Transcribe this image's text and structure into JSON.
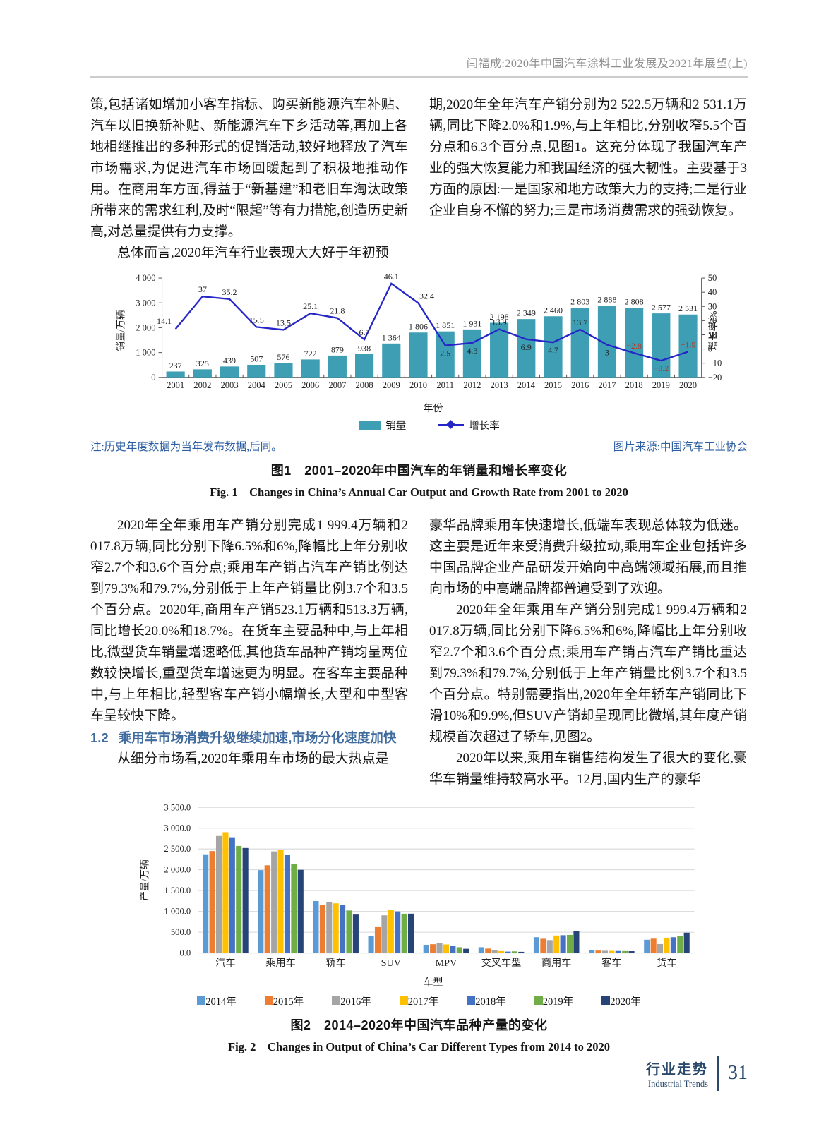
{
  "header": {
    "running_title": "闫福成:2020年中国汽车涂料工业发展及2021年展望(上)"
  },
  "sections": {
    "block1_left": {
      "p1": "策,包括诸如增加小客车指标、购买新能源汽车补贴、汽车以旧换新补贴、新能源汽车下乡活动等,再加上各地相继推出的多种形式的促销活动,较好地释放了汽车市场需求,为促进汽车市场回暖起到了积极地推动作用。在商用车方面,得益于“新基建”和老旧车淘汰政策所带来的需求红利,及时“限超”等有力措施,创造历史新高,对总量提供有力支撑。",
      "p2": "总体而言,2020年汽车行业表现大大好于年初预"
    },
    "block1_right": {
      "p1": "期,2020年全年汽车产销分别为2 522.5万辆和2 531.1万辆,同比下降2.0%和1.9%,与上年相比,分别收窄5.5个百分点和6.3个百分点,见图1。这充分体现了我国汽车产业的强大恢复能力和我国经济的强大韧性。主要基于3方面的原因:一是国家和地方政策大力的支持;二是行业企业自身不懈的努力;三是市场消费需求的强劲恢复。"
    },
    "block2_left": {
      "p1": "2020年全年乘用车产销分别完成1 999.4万辆和2 017.8万辆,同比分别下降6.5%和6%,降幅比上年分别收窄2.7个和3.6个百分点;乘用车产销占汽车产销比例达到79.3%和79.7%,分别低于上年产销量比例3.7个和3.5个百分点。2020年,商用车产销523.1万辆和513.3万辆,同比增长20.0%和18.7%。在货车主要品种中,与上年相比,微型货车销量增速略低,其他货车品种产销均呈两位数较快增长,重型货车增速更为明显。在客车主要品种中,与上年相比,轻型客车产销小幅增长,大型和中型客车呈较快下降。",
      "heading_num": "1.2",
      "heading_text": "乘用车市场消费升级继续加速,市场分化速度加快",
      "p2": "从细分市场看,2020年乘用车市场的最大热点是"
    },
    "block2_right": {
      "p1": "豪华品牌乘用车快速增长,低端车表现总体较为低迷。这主要是近年来受消费升级拉动,乘用车企业包括许多中国品牌企业产品研发开始向中高端领域拓展,而且推向市场的中高端品牌都普遍受到了欢迎。",
      "p2": "2020年全年乘用车产销分别完成1 999.4万辆和2 017.8万辆,同比分别下降6.5%和6%,降幅比上年分别收窄2.7个和3.6个百分点;乘用车产销占汽车产销比重达到79.3%和79.7%,分别低于上年产销量比例3.7个和3.5个百分点。特别需要指出,2020年全年轿车产销同比下滑10%和9.9%,但SUV产销却呈现同比微增,其年度产销规模首次超过了轿车,见图2。",
      "p3": "2020年以来,乘用车销售结构发生了很大的变化,豪华车销量维持较高水平。12月,国内生产的豪华"
    }
  },
  "chart_data": [
    {
      "type": "bar+line",
      "categories": [
        "2001",
        "2002",
        "2003",
        "2004",
        "2005",
        "2006",
        "2007",
        "2008",
        "2009",
        "2010",
        "2011",
        "2012",
        "2013",
        "2014",
        "2015",
        "2016",
        "2017",
        "2018",
        "2019",
        "2020"
      ],
      "series": [
        {
          "name": "销量",
          "type": "bar",
          "color": "#3e9fb4",
          "values": [
            237,
            325,
            439,
            507,
            576,
            722,
            879,
            938,
            1364,
            1806,
            1851,
            1931,
            2198,
            2349,
            2460,
            2803,
            2888,
            2808,
            2577,
            2531
          ]
        },
        {
          "name": "增长率",
          "type": "line",
          "color": "#2525c8",
          "values": [
            14.1,
            37,
            35.2,
            15.5,
            13.5,
            25.1,
            21.8,
            6.7,
            46.1,
            32.4,
            2.5,
            4.3,
            13.9,
            6.9,
            4.7,
            13.7,
            3,
            -2.8,
            -8.2,
            -1.9
          ]
        }
      ],
      "ylabel_left": "销量/万辆",
      "ylabel_right": "增长率/%",
      "xlabel": "年份",
      "ylim_left": [
        0,
        4000
      ],
      "yticks_left": [
        0,
        1000,
        2000,
        3000,
        4000
      ],
      "ylim_right": [
        -20,
        50
      ],
      "yticks_right": [
        -20,
        -10,
        0,
        10,
        20,
        30,
        40,
        50
      ],
      "negative_label_color": "#b4372a",
      "legend": [
        "销量",
        "增长率"
      ],
      "note": "注:历史年度数据为当年发布数据,后同。",
      "source": "图片来源:中国汽车工业协会",
      "caption_zh": "图1　2001–2020年中国汽车的年销量和增长率变化",
      "caption_en": "Fig. 1　Changes in China’s Annual Car Output and Growth Rate from 2001 to 2020"
    },
    {
      "type": "bar",
      "categories": [
        "汽车",
        "乘用车",
        "轿车",
        "SUV",
        "MPV",
        "交叉车型",
        "商用车",
        "客车",
        "货车"
      ],
      "series": [
        {
          "name": "2014年",
          "color": "#5b9bd5",
          "values": [
            2372,
            1992,
            1248,
            408,
            197,
            139,
            380,
            61,
            319
          ]
        },
        {
          "name": "2015年",
          "color": "#ed7d31",
          "values": [
            2450,
            2108,
            1163,
            622,
            211,
            106,
            342,
            59,
            345
          ]
        },
        {
          "name": "2016年",
          "color": "#a5a5a5",
          "values": [
            2812,
            2442,
            1231,
            905,
            247,
            63,
            310,
            54,
            215
          ]
        },
        {
          "name": "2017年",
          "color": "#ffc000",
          "values": [
            2902,
            2481,
            1194,
            1029,
            205,
            46,
            421,
            53,
            368
          ]
        },
        {
          "name": "2018年",
          "color": "#4472c4",
          "values": [
            2781,
            2353,
            1153,
            1000,
            167,
            34,
            428,
            49,
            379
          ]
        },
        {
          "name": "2019年",
          "color": "#70ad47",
          "values": [
            2572,
            2136,
            1022,
            945,
            139,
            40,
            436,
            47,
            400
          ]
        },
        {
          "name": "2020年",
          "color": "#264478",
          "values": [
            2523,
            1999,
            924,
            946,
            101,
            29,
            523,
            44,
            489
          ]
        }
      ],
      "ylabel": "产量/万辆",
      "xlabel": "车型",
      "ylim": [
        0,
        3500
      ],
      "ytick_step": 500,
      "grid": "horizontal",
      "legend_position": "bottom",
      "caption_zh": "图2　2014–2020年中国汽车品种产量的变化",
      "caption_en": "Fig. 2　Changes in Output of China’s Car Different Types from 2014 to 2020"
    }
  ],
  "footer": {
    "section_zh": "行业走势",
    "section_en": "Industrial Trends",
    "page_number": "31"
  },
  "colors": {
    "note_blue": "#2e5fa3",
    "heading_blue": "#3f6b9e",
    "footer_navy": "#2b4a6b",
    "running_head_gray": "#8f8f8f"
  }
}
